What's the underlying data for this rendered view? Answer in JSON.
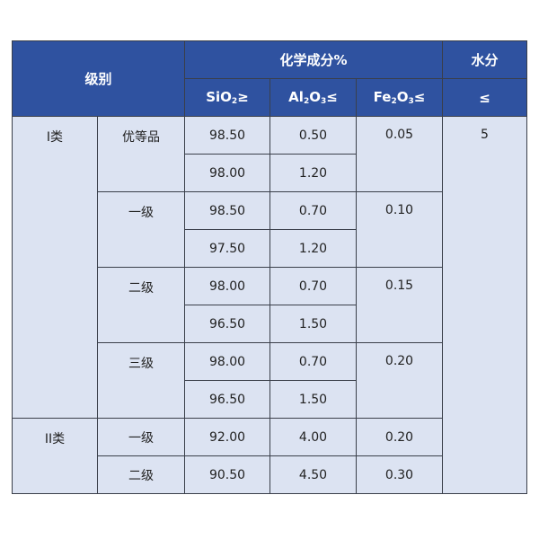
{
  "header": {
    "grade": "级别",
    "chem": "化学成分%",
    "water_top": "水分",
    "water_bottom": "≤",
    "sio2": {
      "base": "SiO",
      "sub": "2",
      "tail": "≥"
    },
    "al2o3": {
      "base": "Al",
      "sub1": "2",
      "mid": "O",
      "sub2": "3",
      "tail": "≤"
    },
    "fe2o3": {
      "base": "Fe",
      "sub1": "2",
      "mid": "O",
      "sub2": "3",
      "tail": "≤"
    }
  },
  "water_value": "5",
  "classes": [
    {
      "name": "I类",
      "grades": [
        {
          "name": "优等品",
          "fe2o3": "0.05",
          "rows": [
            {
              "sio2": "98.50",
              "al2o3": "0.50"
            },
            {
              "sio2": "98.00",
              "al2o3": "1.20"
            }
          ]
        },
        {
          "name": "一级",
          "fe2o3": "0.10",
          "rows": [
            {
              "sio2": "98.50",
              "al2o3": "0.70"
            },
            {
              "sio2": "97.50",
              "al2o3": "1.20"
            }
          ]
        },
        {
          "name": "二级",
          "fe2o3": "0.15",
          "rows": [
            {
              "sio2": "98.00",
              "al2o3": "0.70"
            },
            {
              "sio2": "96.50",
              "al2o3": "1.50"
            }
          ]
        },
        {
          "name": "三级",
          "fe2o3": "0.20",
          "rows": [
            {
              "sio2": "98.00",
              "al2o3": "0.70"
            },
            {
              "sio2": "96.50",
              "al2o3": "1.50"
            }
          ]
        }
      ]
    },
    {
      "name": "II类",
      "grades": [
        {
          "name": "一级",
          "fe2o3": "0.20",
          "rows": [
            {
              "sio2": "92.00",
              "al2o3": "4.00"
            }
          ]
        },
        {
          "name": "二级",
          "fe2o3": "0.30",
          "rows": [
            {
              "sio2": "90.50",
              "al2o3": "4.50"
            }
          ]
        }
      ]
    }
  ]
}
